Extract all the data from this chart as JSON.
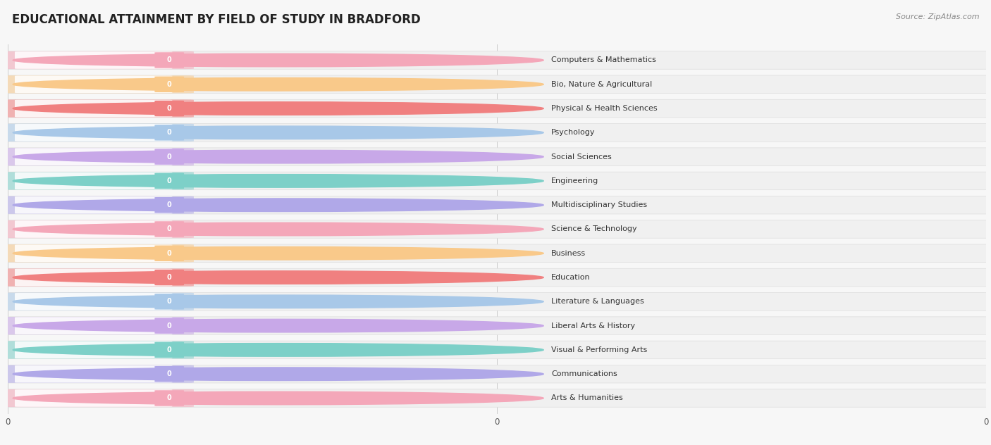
{
  "title": "EDUCATIONAL ATTAINMENT BY FIELD OF STUDY IN BRADFORD",
  "source": "Source: ZipAtlas.com",
  "categories": [
    "Computers & Mathematics",
    "Bio, Nature & Agricultural",
    "Physical & Health Sciences",
    "Psychology",
    "Social Sciences",
    "Engineering",
    "Multidisciplinary Studies",
    "Science & Technology",
    "Business",
    "Education",
    "Literature & Languages",
    "Liberal Arts & History",
    "Visual & Performing Arts",
    "Communications",
    "Arts & Humanities"
  ],
  "values": [
    0,
    0,
    0,
    0,
    0,
    0,
    0,
    0,
    0,
    0,
    0,
    0,
    0,
    0,
    0
  ],
  "bar_colors": [
    "#f4a7b9",
    "#f9c98a",
    "#f08080",
    "#a8c8e8",
    "#c8a8e8",
    "#7dd0c8",
    "#b0a8e8",
    "#f4a7b9",
    "#f9c98a",
    "#f08080",
    "#a8c8e8",
    "#c8a8e8",
    "#7dd0c8",
    "#b0a8e8",
    "#f4a7b9"
  ],
  "background_color": "#f7f7f7",
  "bar_bg_color": "#eeeeee",
  "bar_inner_color": "#ffffff",
  "xlim_max": 1.0,
  "title_fontsize": 12,
  "bar_height": 0.72,
  "figsize": [
    14.06,
    6.32
  ],
  "xtick_positions": [
    0.0,
    0.5,
    1.0
  ],
  "xtick_labels": [
    "0",
    "0",
    "0"
  ]
}
